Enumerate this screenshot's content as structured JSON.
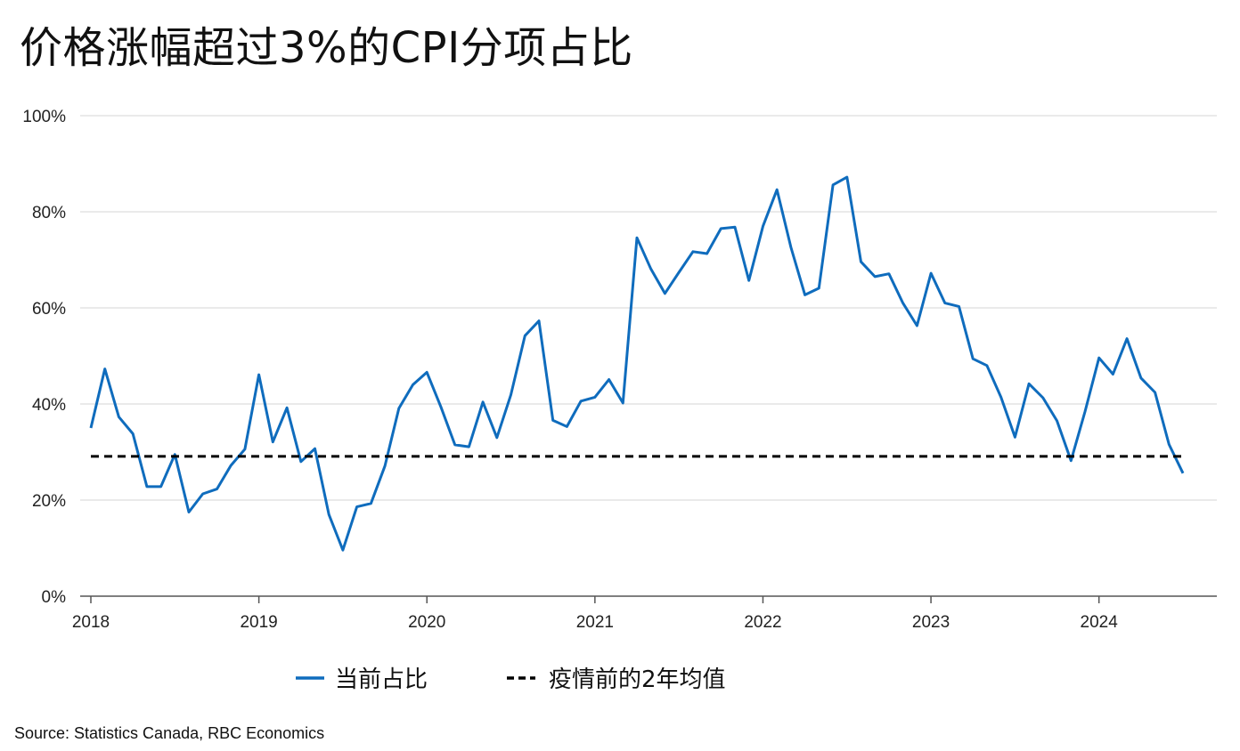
{
  "title": "价格涨幅超过3%的CPI分项占比",
  "source": "Source: Statistics Canada, RBC Economics",
  "colors": {
    "series": "#0f6cbd",
    "benchmark": "#000000",
    "grid": "#e3e3e3",
    "axis": "#555555"
  },
  "chart_data": {
    "type": "line",
    "ylim": [
      0,
      100
    ],
    "xlim": [
      2018.0,
      2024.5
    ],
    "y_ticks": [
      0,
      20,
      40,
      60,
      80,
      100
    ],
    "y_tick_labels": [
      "0%",
      "20%",
      "40%",
      "60%",
      "80%",
      "100%"
    ],
    "x_ticks": [
      2018,
      2019,
      2020,
      2021,
      2022,
      2023,
      2024
    ],
    "x_tick_labels": [
      "2018",
      "2019",
      "2020",
      "2021",
      "2022",
      "2023",
      "2024"
    ],
    "grid": "horizontal",
    "legend_position": "bottom-center",
    "series": [
      {
        "name": "当前占比",
        "style": "solid",
        "x": [
          "2018-01",
          "2018-02",
          "2018-03",
          "2018-04",
          "2018-05",
          "2018-06",
          "2018-07",
          "2018-08",
          "2018-09",
          "2018-10",
          "2018-11",
          "2018-12",
          "2019-01",
          "2019-02",
          "2019-03",
          "2019-04",
          "2019-05",
          "2019-06",
          "2019-07",
          "2019-08",
          "2019-09",
          "2019-10",
          "2019-11",
          "2019-12",
          "2020-01",
          "2020-02",
          "2020-03",
          "2020-04",
          "2020-05",
          "2020-06",
          "2020-07",
          "2020-08",
          "2020-09",
          "2020-10",
          "2020-11",
          "2020-12",
          "2021-01",
          "2021-02",
          "2021-03",
          "2021-04",
          "2021-05",
          "2021-06",
          "2021-07",
          "2021-08",
          "2021-09",
          "2021-10",
          "2021-11",
          "2021-12",
          "2022-01",
          "2022-02",
          "2022-03",
          "2022-04",
          "2022-05",
          "2022-06",
          "2022-07",
          "2022-08",
          "2022-09",
          "2022-10",
          "2022-11",
          "2022-12",
          "2023-01",
          "2023-02",
          "2023-03",
          "2023-04",
          "2023-05",
          "2023-06",
          "2023-07",
          "2023-08",
          "2023-09",
          "2023-10",
          "2023-11",
          "2023-12",
          "2024-01",
          "2024-02",
          "2024-03",
          "2024-04",
          "2024-05",
          "2024-06",
          "2024-07"
        ],
        "values": [
          35.0,
          47.3,
          37.3,
          33.8,
          22.8,
          22.8,
          29.5,
          17.5,
          21.3,
          22.3,
          27.2,
          30.6,
          46.1,
          32.1,
          39.2,
          28.0,
          30.7,
          17.0,
          9.6,
          18.6,
          19.3,
          27.1,
          39.1,
          44.0,
          46.6,
          39.4,
          31.5,
          31.1,
          40.4,
          33.0,
          41.9,
          54.2,
          57.3,
          36.6,
          35.3,
          40.6,
          41.4,
          45.1,
          40.2,
          74.6,
          68.1,
          63.0,
          67.4,
          71.7,
          71.3,
          76.5,
          76.8,
          65.7,
          77.0,
          84.6,
          72.6,
          62.7,
          64.1,
          85.6,
          87.2,
          69.6,
          66.5,
          67.1,
          61.0,
          56.3,
          67.2,
          61.0,
          60.3,
          49.4,
          48.0,
          41.4,
          33.1,
          44.2,
          41.3,
          36.5,
          28.2,
          38.4,
          49.6,
          46.2,
          53.6,
          45.4,
          42.4,
          31.6,
          25.6
        ]
      },
      {
        "name": "疫情前的2年均值",
        "style": "dashed",
        "x": [
          "2018-01",
          "2024-07"
        ],
        "values": [
          29.1,
          29.1
        ]
      }
    ]
  }
}
